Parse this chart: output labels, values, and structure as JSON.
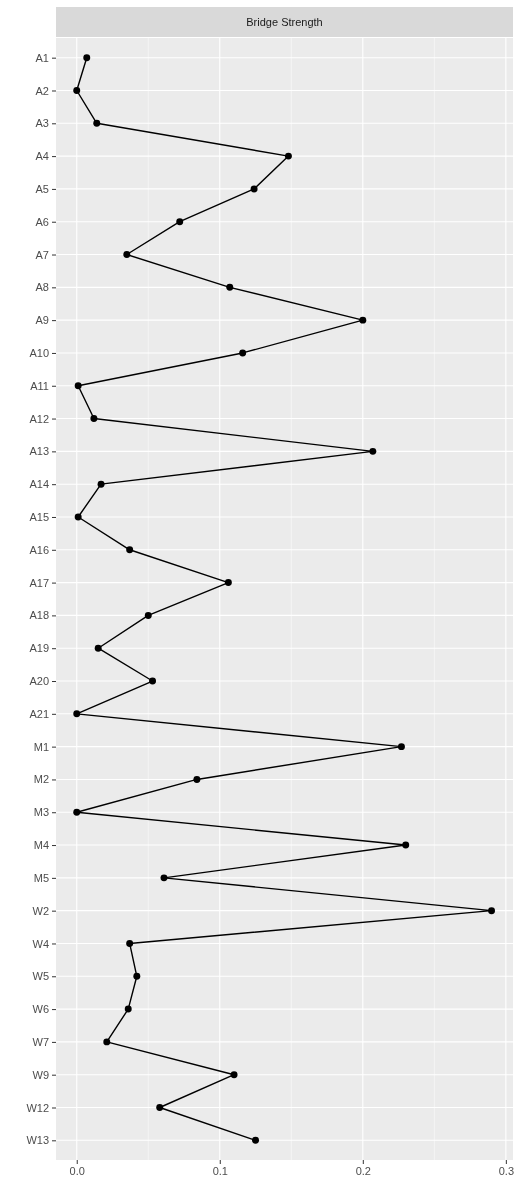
{
  "chart_data": {
    "type": "line",
    "orientation": "horizontal",
    "title": "Bridge Strength",
    "categories": [
      "A1",
      "A2",
      "A3",
      "A4",
      "A5",
      "A6",
      "A7",
      "A8",
      "A9",
      "A10",
      "A11",
      "A12",
      "A13",
      "A14",
      "A15",
      "A16",
      "A17",
      "A18",
      "A19",
      "A20",
      "A21",
      "M1",
      "M2",
      "M3",
      "M4",
      "M5",
      "W2",
      "W4",
      "W5",
      "W6",
      "W7",
      "W9",
      "W12",
      "W13"
    ],
    "values": [
      0.007,
      0.0,
      0.014,
      0.148,
      0.124,
      0.072,
      0.035,
      0.107,
      0.2,
      0.116,
      0.001,
      0.012,
      0.207,
      0.017,
      0.001,
      0.037,
      0.106,
      0.05,
      0.015,
      0.053,
      0.0,
      0.227,
      0.084,
      0.0,
      0.23,
      0.061,
      0.29,
      0.037,
      0.042,
      0.036,
      0.021,
      0.11,
      0.058,
      0.125
    ],
    "color": "#000000",
    "xlim": [
      -0.0145,
      0.305
    ],
    "xticks": [
      {
        "value": 0,
        "label": "0.0"
      },
      0.1,
      0.2,
      0.3
    ],
    "grid": true,
    "marker": "circle",
    "line_style": "solid"
  }
}
